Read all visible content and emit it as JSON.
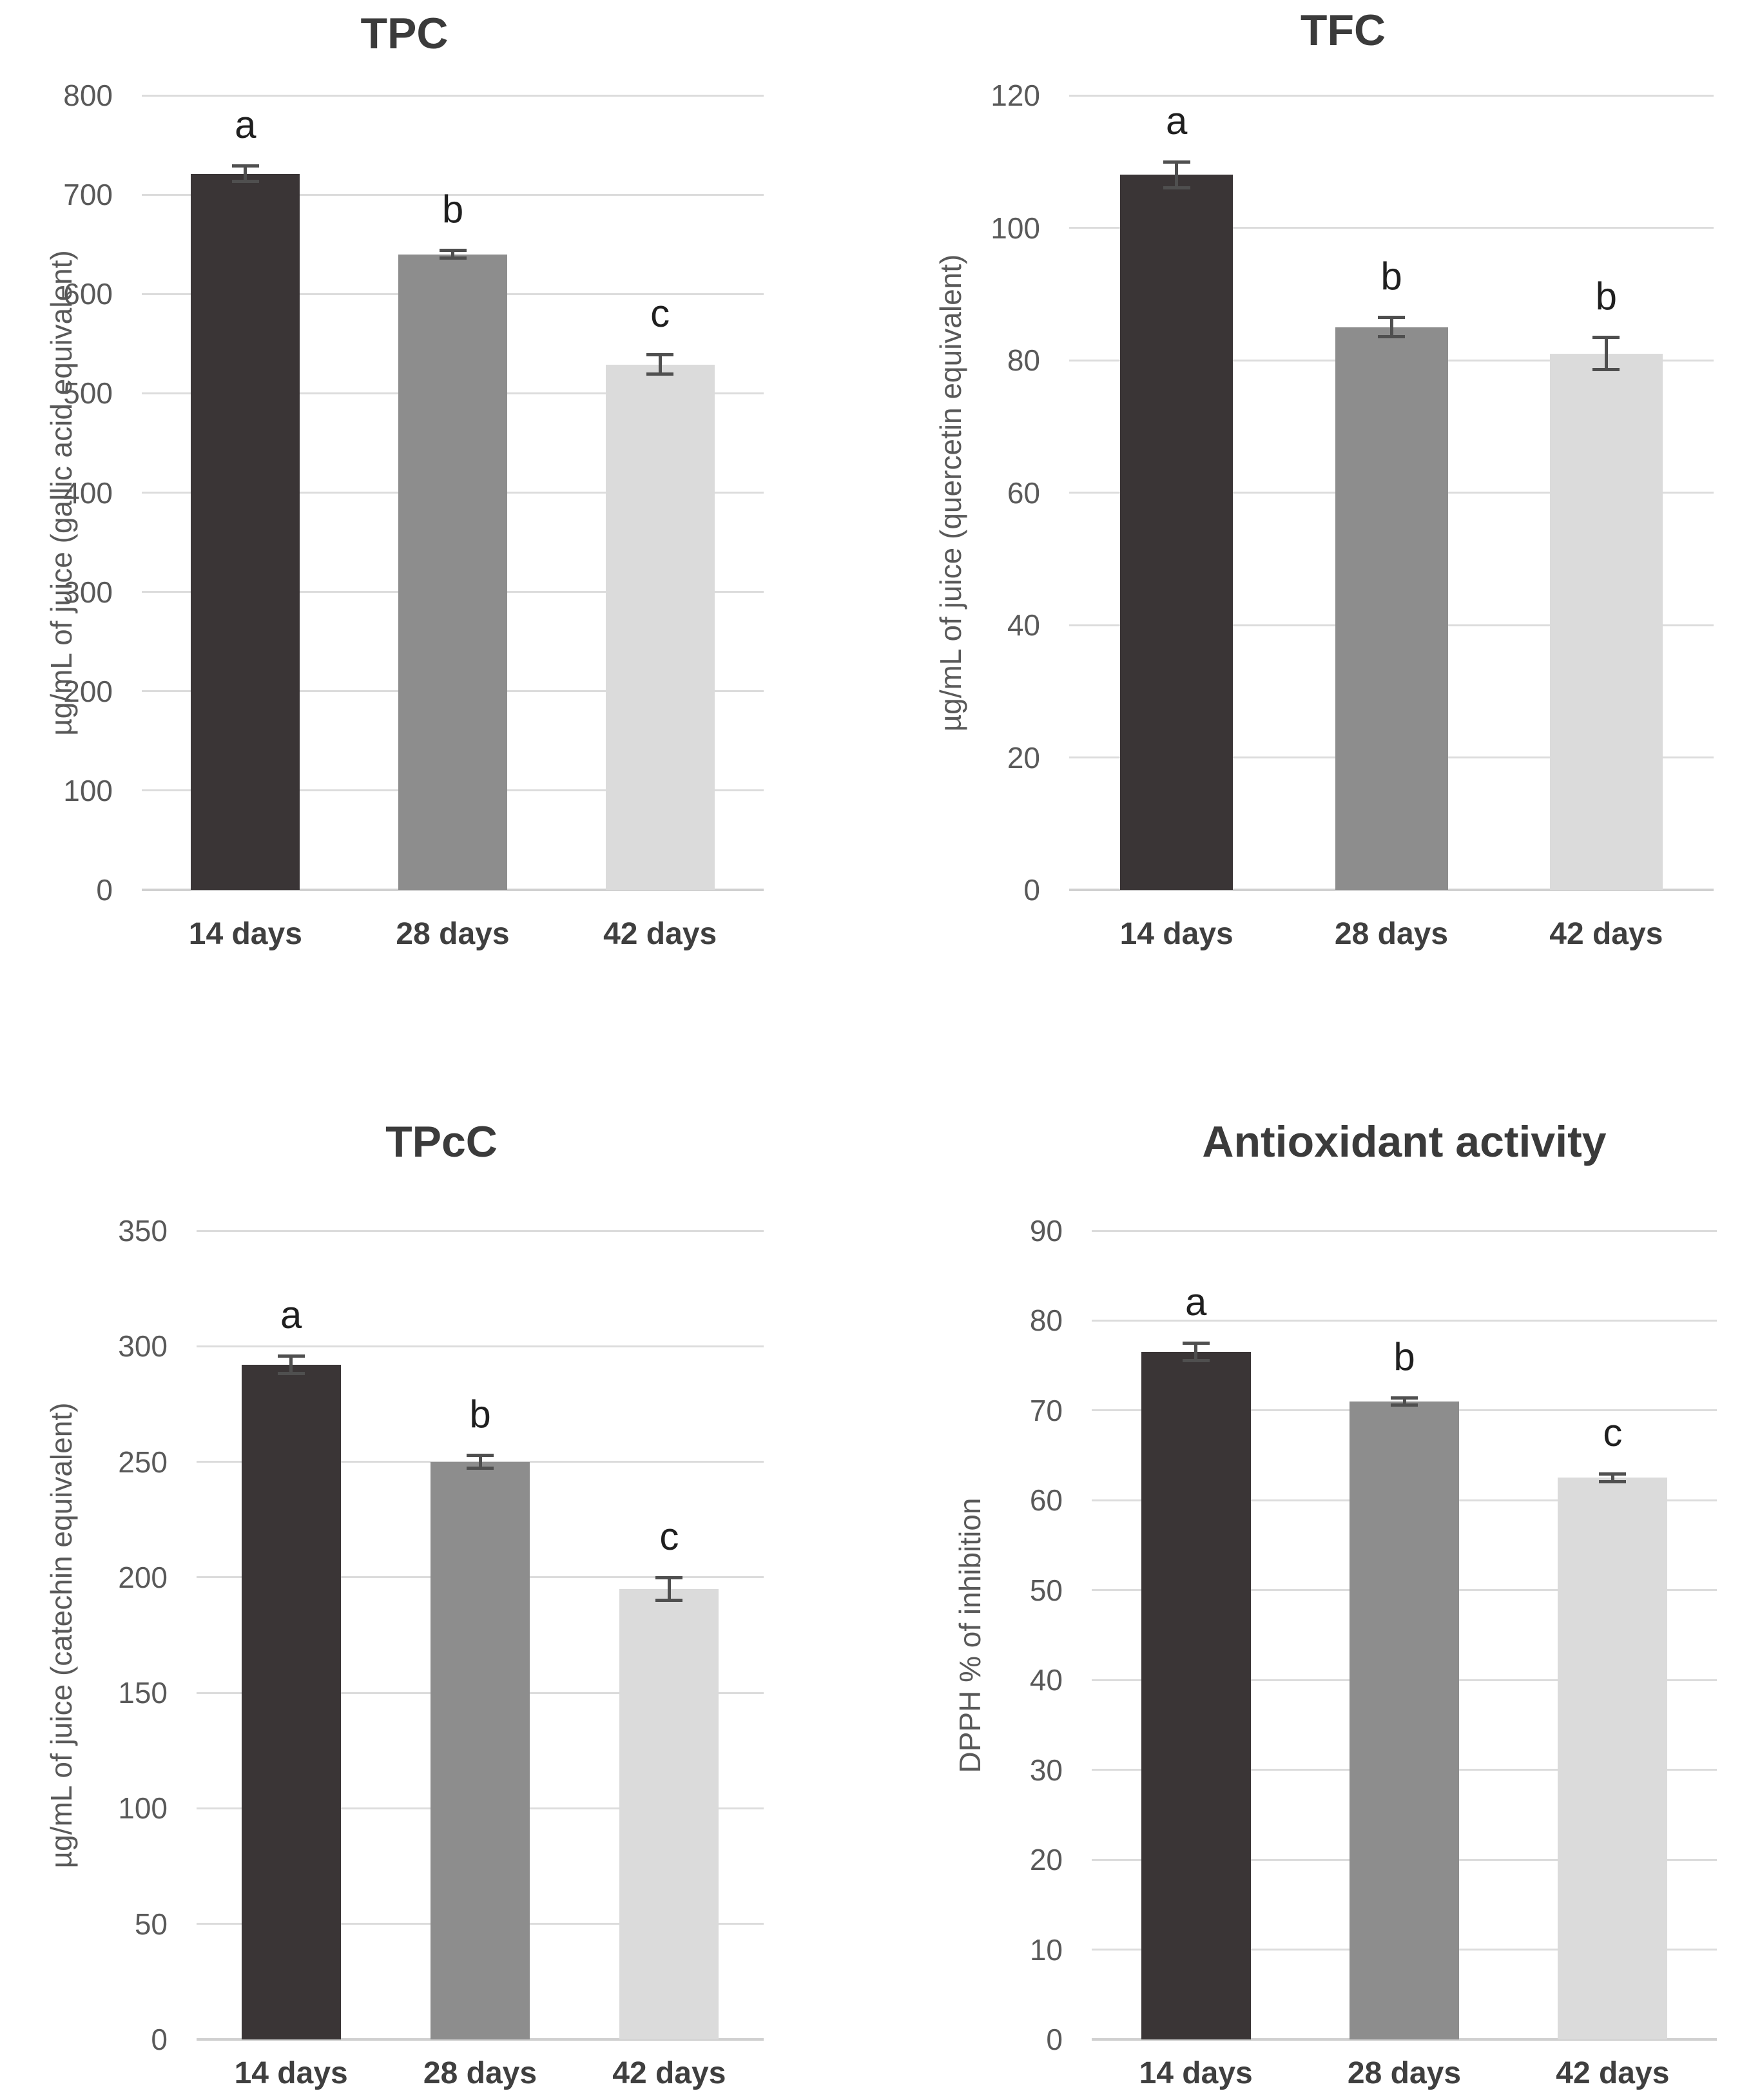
{
  "figure": {
    "description": "Four bar charts of phenolic content and antioxidant activity over fermentation time",
    "background": "#ffffff"
  },
  "colors": {
    "bar_colors": [
      "#3a3536",
      "#8d8d8d",
      "#dbdbdb"
    ],
    "gridline": "#dcdcdc",
    "axis_line": "#d0d0d0",
    "tick_label": "#595959",
    "title": "#3b3b3b",
    "x_label": "#3f3f3f",
    "sig_letter": "#1f1f1f",
    "error_bar": "#4f4f4f"
  },
  "chart_data": [
    {
      "type": "bar",
      "title": "TPC",
      "ylabel": "µg/mL of juice (gallic acid equivalent)",
      "xlabel": "",
      "categories": [
        "14 days",
        "28 days",
        "42 days"
      ],
      "values": [
        721,
        640,
        529
      ],
      "errors": [
        8,
        4,
        10
      ],
      "sig_letters": [
        "a",
        "b",
        "c"
      ],
      "ylim": [
        0,
        800
      ],
      "ytick_step": 100,
      "yticks": [
        800,
        700,
        600,
        500,
        400,
        300,
        200,
        100,
        0
      ],
      "grid": true,
      "legend_position": "none"
    },
    {
      "type": "bar",
      "title": "TFC",
      "ylabel": "µg/mL of juice (quercetin equivalent)",
      "xlabel": "",
      "categories": [
        "14 days",
        "28 days",
        "42 days"
      ],
      "values": [
        108,
        85,
        81
      ],
      "errors": [
        2,
        1.5,
        2.5
      ],
      "sig_letters": [
        "a",
        "b",
        "b"
      ],
      "ylim": [
        0,
        120
      ],
      "ytick_step": 20,
      "yticks": [
        120,
        100,
        80,
        60,
        40,
        20,
        0
      ],
      "grid": true,
      "legend_position": "none"
    },
    {
      "type": "bar",
      "title": "TPcC",
      "ylabel": "µg/mL of juice (catechin equivalent)",
      "xlabel": "",
      "categories": [
        "14 days",
        "28 days",
        "42 days"
      ],
      "values": [
        292,
        250,
        195
      ],
      "errors": [
        4,
        3,
        5
      ],
      "sig_letters": [
        "a",
        "b",
        "c"
      ],
      "ylim": [
        0,
        350
      ],
      "ytick_step": 50,
      "yticks": [
        350,
        300,
        250,
        200,
        150,
        100,
        50,
        0
      ],
      "grid": true,
      "legend_position": "none"
    },
    {
      "type": "bar",
      "title": "Antioxidant activity",
      "ylabel": "DPPH % of inhibition",
      "xlabel": "",
      "categories": [
        "14 days",
        "28 days",
        "42 days"
      ],
      "values": [
        76.5,
        71,
        62.5
      ],
      "errors": [
        1,
        0.4,
        0.5
      ],
      "sig_letters": [
        "a",
        "b",
        "c"
      ],
      "ylim": [
        0,
        90
      ],
      "ytick_step": 10,
      "yticks": [
        90,
        80,
        70,
        60,
        50,
        40,
        30,
        20,
        10,
        0
      ],
      "grid": true,
      "legend_position": "none"
    }
  ]
}
